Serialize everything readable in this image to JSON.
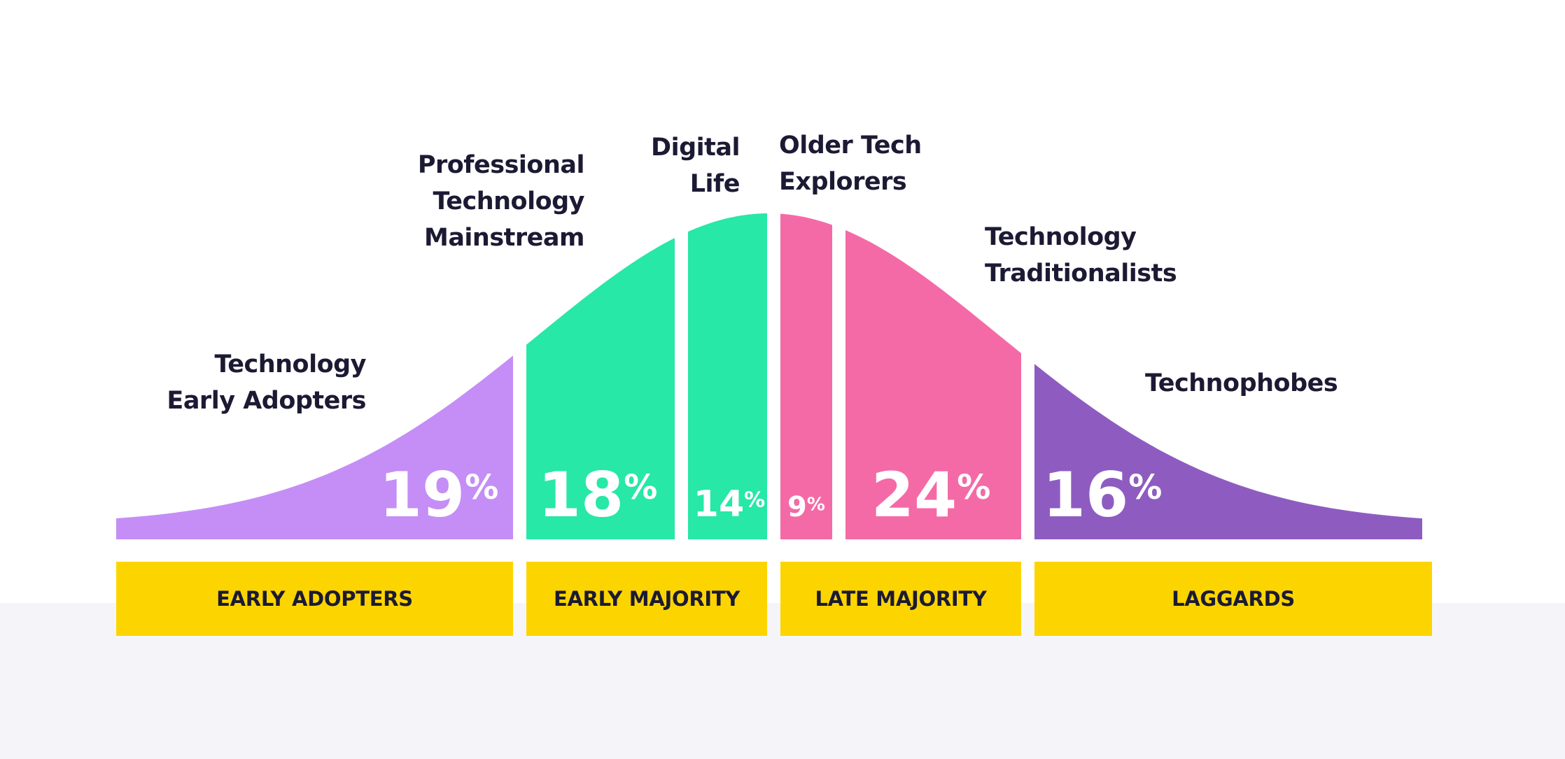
{
  "chart_data": {
    "type": "area",
    "title": "",
    "segments": [
      {
        "name": "Technology Early Adopters",
        "label_lines": [
          "Technology",
          "Early Adopters"
        ],
        "value": 19,
        "display": "19",
        "unit": "%",
        "color": "#c48ef6"
      },
      {
        "name": "Professional Technology Mainstream",
        "label_lines": [
          "Professional",
          "Technology",
          "Mainstream"
        ],
        "value": 18,
        "display": "18",
        "unit": "%",
        "color": "#27e8a6"
      },
      {
        "name": "Digital Life",
        "label_lines": [
          "Digital",
          "Life"
        ],
        "value": 14,
        "display": "14",
        "unit": "%",
        "color": "#27e8a6"
      },
      {
        "name": "Older Tech Explorers",
        "label_lines": [
          "Older Tech",
          "Explorers"
        ],
        "value": 9,
        "display": "9",
        "unit": "%",
        "color": "#f46aa6"
      },
      {
        "name": "Technology Traditionalists",
        "label_lines": [
          "Technology",
          "Traditionalists"
        ],
        "value": 24,
        "display": "24",
        "unit": "%",
        "color": "#f46aa6"
      },
      {
        "name": "Technophobes",
        "label_lines": [
          "Technophobes"
        ],
        "value": 16,
        "display": "16",
        "unit": "%",
        "color": "#8e5cc1"
      }
    ],
    "groups": [
      {
        "label": "EARLY ADOPTERS",
        "segments": [
          "Technology Early Adopters"
        ]
      },
      {
        "label": "EARLY MAJORITY",
        "segments": [
          "Professional Technology Mainstream",
          "Digital Life"
        ]
      },
      {
        "label": "LATE MAJORITY",
        "segments": [
          "Older Tech Explorers",
          "Technology Traditionalists"
        ]
      },
      {
        "label": "LAGGARDS",
        "segments": [
          "Technophobes"
        ]
      }
    ]
  },
  "colors": {
    "text_dark": "#1c1a33",
    "group_box": "#fcd500",
    "bottom_band": "#f5f5f9"
  }
}
